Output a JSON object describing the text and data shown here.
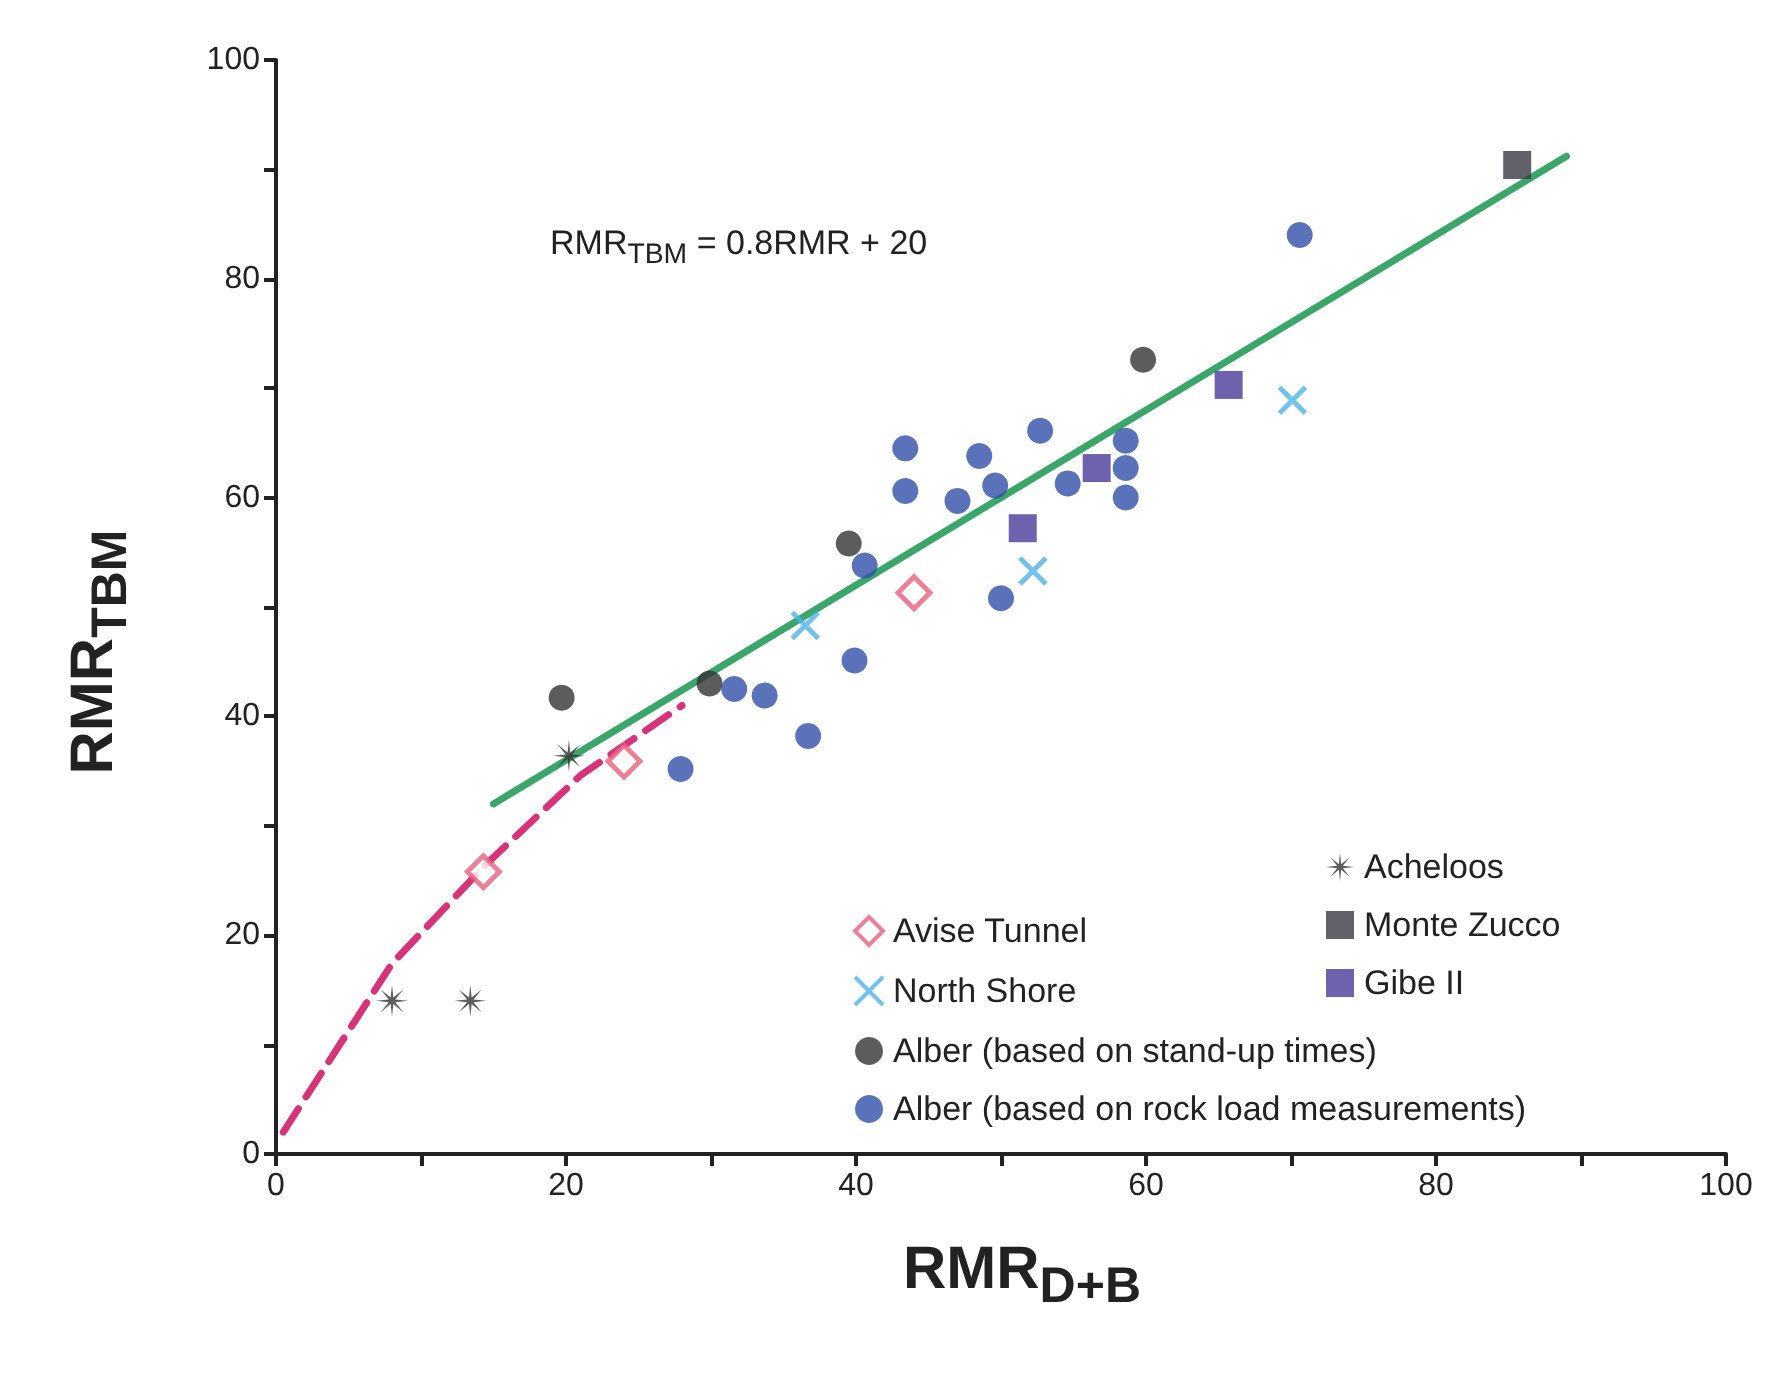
{
  "chart_data": {
    "type": "scatter",
    "xlabel": "RMR$_{D+B}$",
    "ylabel": "RMR$_{TBM}$",
    "annotations": [
      "RMR$_{TBM}$ = 0.8RMR + 20"
    ],
    "xlim": [
      0,
      100
    ],
    "ylim": [
      0,
      100
    ],
    "xticks": [
      0,
      {
        "value": 10,
        "label": null
      },
      20,
      {
        "value": 30,
        "label": null
      },
      40,
      {
        "value": 50,
        "label": null
      },
      60,
      {
        "value": 70,
        "label": null
      },
      80,
      {
        "value": 90,
        "label": null
      },
      100
    ],
    "yticks": [
      0,
      {
        "value": 10,
        "label": null
      },
      20,
      {
        "value": 30,
        "label": null
      },
      40,
      {
        "value": 50,
        "label": null
      },
      60,
      {
        "value": 70,
        "label": null
      },
      80,
      {
        "value": 90,
        "label": null
      },
      100
    ],
    "grid": false,
    "legend": "bottom right",
    "series": [
      {
        "type": "line",
        "color": "#3aa66a",
        "marker": "none",
        "line_style": "solid",
        "x": [
          15,
          89
        ],
        "values": [
          32,
          91.2
        ]
      },
      {
        "type": "line",
        "color": "#d6337a",
        "marker": "none",
        "line_style": "dashed",
        "x": [
          0.5,
          8,
          14.5,
          21,
          28
        ],
        "values": [
          2,
          17.4,
          26.5,
          34.6,
          41
        ]
      },
      {
        "name": "Acheloos",
        "color": "#333333",
        "marker": "star",
        "x": [
          8,
          13.4,
          20.2
        ],
        "values": [
          14,
          14,
          36.4
        ]
      },
      {
        "name": "Avise Tunnel",
        "color": "#e8607f",
        "marker": "diamond",
        "x": [
          14.3,
          24,
          44
        ],
        "values": [
          25.8,
          35.9,
          51.3
        ]
      },
      {
        "name": "Monte Zucco",
        "color": "#3a3a44",
        "marker": "square",
        "x": [
          85.6
        ],
        "values": [
          90.4
        ]
      },
      {
        "name": "North Shore",
        "color": "#4fb3e8",
        "marker": "cross",
        "x": [
          36.5,
          52.2,
          70.1
        ],
        "values": [
          48.3,
          53.3,
          68.9
        ]
      },
      {
        "name": "Gibe II",
        "color": "#4a3a9a",
        "marker": "square",
        "x": [
          51.5,
          56.6,
          65.7
        ],
        "values": [
          57.2,
          62.7,
          70.3
        ]
      },
      {
        "name": "Alber (based on stand-up times)",
        "color": "#333333",
        "marker": "circle",
        "x": [
          19.7,
          29.9,
          39.5,
          59.8
        ],
        "values": [
          41.7,
          43,
          55.8,
          72.6
        ]
      },
      {
        "name": "Alber (based on rock load measurements)",
        "color": "#2f4fa8",
        "marker": "circle",
        "x": [
          27.9,
          31.6,
          33.7,
          36.7,
          39.9,
          40.6,
          43.4,
          43.4,
          47,
          48.5,
          49.6,
          52.7,
          50,
          54.6,
          58.6,
          58.6,
          58.6,
          70.6
        ],
        "values": [
          35.2,
          42.5,
          41.9,
          38.2,
          45.1,
          53.8,
          64.5,
          60.6,
          59.7,
          63.8,
          61.1,
          66.1,
          50.8,
          61.3,
          65.2,
          62.7,
          60,
          84
        ]
      }
    ]
  }
}
